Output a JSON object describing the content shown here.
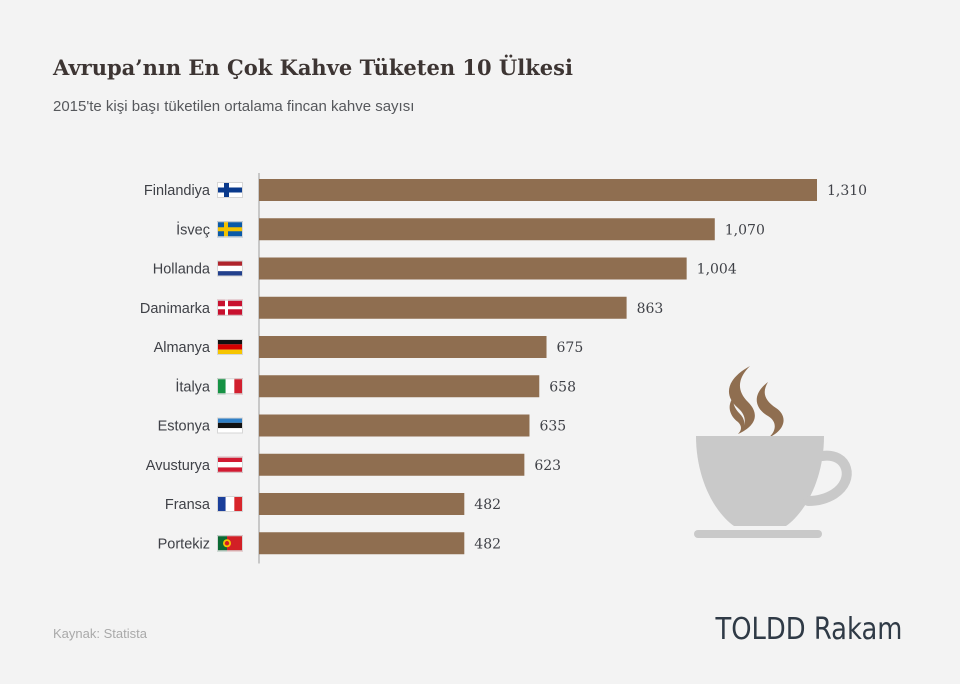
{
  "header": {
    "title": "Avrupa’nın En Çok Kahve Tüketen 10 Ülkesi",
    "subtitle": "2015'te kişi başı tüketilen ortalama fincan kahve sayısı"
  },
  "chart_data": {
    "type": "bar",
    "orientation": "horizontal",
    "title": "Avrupa’nın En Çok Kahve Tüketen 10 Ülkesi",
    "subtitle": "2015'te kişi başı tüketilen ortalama fincan kahve sayısı",
    "categories": [
      "Finlandiya",
      "İsveç",
      "Hollanda",
      "Danimarka",
      "Almanya",
      "İtalya",
      "Estonya",
      "Avusturya",
      "Fransa",
      "Portekiz"
    ],
    "values": [
      1310,
      1070,
      1004,
      863,
      675,
      658,
      635,
      623,
      482,
      482
    ],
    "value_labels": [
      "1,310",
      "1,070",
      "1,004",
      "863",
      "675",
      "658",
      "635",
      "623",
      "482",
      "482"
    ],
    "flags": [
      "finland",
      "sweden",
      "netherlands",
      "denmark",
      "germany",
      "italy",
      "estonia",
      "austria",
      "france",
      "portugal"
    ],
    "xlim": [
      0,
      1310
    ],
    "grid": false,
    "bar_color": "#8f6e50",
    "label_color": "#3f4147"
  },
  "footer": {
    "source": "Kaynak: Statista",
    "brand": "TOLDD Rakam"
  },
  "decoration": {
    "icon": "coffee-cup-icon",
    "cup_color": "#c9c9c9",
    "steam_color": "#8f6e50"
  }
}
